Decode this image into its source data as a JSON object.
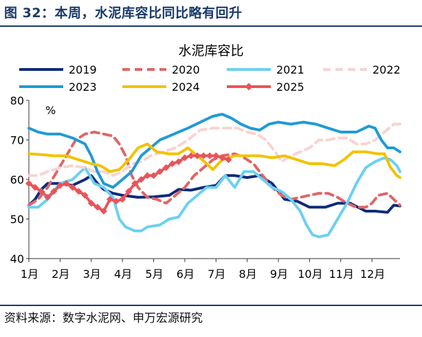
{
  "figure": {
    "title": "图 32：本周，水泥库容比同比略有回升",
    "source": "资料来源：数字水泥网、申万宏源研究"
  },
  "chart_data": {
    "type": "line",
    "title": "水泥库容比",
    "unit": "%",
    "xlabel": "",
    "ylabel": "",
    "ylim": [
      40,
      80
    ],
    "yticks": [
      "40",
      "50",
      "60",
      "70",
      "80"
    ],
    "xlim": [
      1,
      12.9
    ],
    "month_labels": [
      "1月",
      "2月",
      "3月",
      "4月",
      "5月",
      "6月",
      "7月",
      "8月",
      "9月",
      "10月",
      "11月",
      "12月"
    ],
    "grid": false,
    "legend_position": "top",
    "series": [
      {
        "name": "2019",
        "color": "#0e2a7a",
        "dash": "solid",
        "width": 4,
        "points": [
          [
            1.0,
            53.5
          ],
          [
            1.2,
            55
          ],
          [
            1.4,
            57.5
          ],
          [
            1.6,
            59
          ],
          [
            2.0,
            59
          ],
          [
            2.4,
            58.5
          ],
          [
            2.8,
            60
          ],
          [
            3.0,
            61
          ],
          [
            3.2,
            59
          ],
          [
            3.4,
            57.5
          ],
          [
            3.7,
            56.5
          ],
          [
            4.0,
            56
          ],
          [
            4.5,
            55.5
          ],
          [
            5.0,
            55.6
          ],
          [
            5.5,
            56
          ],
          [
            5.8,
            57.5
          ],
          [
            6.2,
            57.3
          ],
          [
            6.6,
            58
          ],
          [
            7.0,
            58.5
          ],
          [
            7.3,
            61
          ],
          [
            7.6,
            61
          ],
          [
            8.0,
            60.5
          ],
          [
            8.4,
            61
          ],
          [
            8.8,
            59
          ],
          [
            9.2,
            55
          ],
          [
            9.6,
            54.5
          ],
          [
            10.0,
            53
          ],
          [
            10.5,
            53
          ],
          [
            10.9,
            54
          ],
          [
            11.3,
            54
          ],
          [
            11.8,
            52
          ],
          [
            12.1,
            52
          ],
          [
            12.5,
            51.7
          ],
          [
            12.7,
            53.5
          ],
          [
            12.9,
            53.3
          ]
        ]
      },
      {
        "name": "2020",
        "color": "#e06666",
        "dash": "dashed",
        "width": 4,
        "points": [
          [
            1.0,
            53.5
          ],
          [
            1.3,
            55
          ],
          [
            1.6,
            58
          ],
          [
            1.9,
            62
          ],
          [
            2.2,
            66
          ],
          [
            2.5,
            70
          ],
          [
            2.8,
            71.5
          ],
          [
            3.1,
            72
          ],
          [
            3.4,
            71.5
          ],
          [
            3.7,
            71
          ],
          [
            3.9,
            69
          ],
          [
            4.1,
            66
          ],
          [
            4.3,
            61
          ],
          [
            4.5,
            58
          ],
          [
            4.8,
            55.5
          ],
          [
            5.1,
            55
          ],
          [
            5.4,
            54
          ],
          [
            5.7,
            56
          ],
          [
            6.0,
            58
          ],
          [
            6.3,
            61
          ],
          [
            6.6,
            63
          ],
          [
            6.9,
            65
          ],
          [
            7.2,
            66
          ],
          [
            7.6,
            66.5
          ],
          [
            7.9,
            65.5
          ],
          [
            8.2,
            64
          ],
          [
            8.5,
            61
          ],
          [
            8.8,
            58
          ],
          [
            9.1,
            56
          ],
          [
            9.4,
            55
          ],
          [
            9.7,
            55.5
          ],
          [
            10.0,
            56
          ],
          [
            10.3,
            56.5
          ],
          [
            10.6,
            56.5
          ],
          [
            10.9,
            55.5
          ],
          [
            11.2,
            54
          ],
          [
            11.5,
            53
          ],
          [
            11.8,
            53
          ],
          [
            12.0,
            54
          ],
          [
            12.2,
            56
          ],
          [
            12.5,
            56.5
          ],
          [
            12.7,
            55
          ],
          [
            12.9,
            53.5
          ]
        ]
      },
      {
        "name": "2021",
        "color": "#6cd0f2",
        "dash": "solid",
        "width": 4,
        "points": [
          [
            1.0,
            53
          ],
          [
            1.3,
            53
          ],
          [
            1.6,
            55
          ],
          [
            2.0,
            59
          ],
          [
            2.4,
            60
          ],
          [
            2.8,
            63
          ],
          [
            3.1,
            59
          ],
          [
            3.4,
            58
          ],
          [
            3.7,
            55.5
          ],
          [
            3.9,
            50
          ],
          [
            4.1,
            48
          ],
          [
            4.4,
            47
          ],
          [
            4.6,
            47
          ],
          [
            4.8,
            48
          ],
          [
            5.2,
            48.5
          ],
          [
            5.5,
            50
          ],
          [
            5.8,
            50.5
          ],
          [
            6.1,
            54
          ],
          [
            6.4,
            56
          ],
          [
            6.7,
            58
          ],
          [
            7.0,
            58
          ],
          [
            7.3,
            61
          ],
          [
            7.6,
            58
          ],
          [
            7.9,
            62
          ],
          [
            8.2,
            62
          ],
          [
            8.5,
            60
          ],
          [
            8.8,
            58
          ],
          [
            9.1,
            57
          ],
          [
            9.4,
            55
          ],
          [
            9.7,
            52
          ],
          [
            9.9,
            48.5
          ],
          [
            10.1,
            46
          ],
          [
            10.3,
            45.5
          ],
          [
            10.6,
            46
          ],
          [
            10.9,
            50
          ],
          [
            11.2,
            54
          ],
          [
            11.5,
            59
          ],
          [
            11.8,
            63
          ],
          [
            12.1,
            64.5
          ],
          [
            12.4,
            65.5
          ],
          [
            12.6,
            65
          ],
          [
            12.8,
            63.5
          ],
          [
            12.9,
            62
          ]
        ]
      },
      {
        "name": "2022",
        "color": "#f8d3d3",
        "dash": "dashed",
        "width": 4,
        "points": [
          [
            1.0,
            61
          ],
          [
            1.3,
            61
          ],
          [
            1.6,
            62
          ],
          [
            2.0,
            63
          ],
          [
            2.4,
            63.5
          ],
          [
            2.8,
            63
          ],
          [
            3.1,
            62
          ],
          [
            3.4,
            62
          ],
          [
            3.7,
            61
          ],
          [
            4.0,
            62
          ],
          [
            4.3,
            64
          ],
          [
            4.6,
            64.5
          ],
          [
            4.9,
            66
          ],
          [
            5.3,
            67
          ],
          [
            5.7,
            68
          ],
          [
            6.1,
            70
          ],
          [
            6.5,
            72.5
          ],
          [
            6.9,
            73
          ],
          [
            7.3,
            73
          ],
          [
            7.7,
            73
          ],
          [
            8.0,
            72
          ],
          [
            8.3,
            71.5
          ],
          [
            8.6,
            70
          ],
          [
            8.9,
            67
          ],
          [
            9.1,
            64.5
          ],
          [
            9.4,
            66
          ],
          [
            9.7,
            67
          ],
          [
            10.0,
            68
          ],
          [
            10.3,
            70
          ],
          [
            10.6,
            70
          ],
          [
            10.9,
            70.5
          ],
          [
            11.2,
            70.5
          ],
          [
            11.5,
            69
          ],
          [
            11.8,
            69
          ],
          [
            12.1,
            70
          ],
          [
            12.4,
            72
          ],
          [
            12.7,
            74
          ],
          [
            12.9,
            74
          ]
        ]
      },
      {
        "name": "2023",
        "color": "#1f9ad6",
        "dash": "solid",
        "width": 4,
        "points": [
          [
            1.0,
            73
          ],
          [
            1.3,
            72
          ],
          [
            1.6,
            71.5
          ],
          [
            2.0,
            71.5
          ],
          [
            2.4,
            70.5
          ],
          [
            2.8,
            69
          ],
          [
            3.0,
            66
          ],
          [
            3.2,
            62
          ],
          [
            3.4,
            59
          ],
          [
            3.7,
            58
          ],
          [
            4.0,
            60
          ],
          [
            4.3,
            62
          ],
          [
            4.6,
            66
          ],
          [
            4.9,
            68
          ],
          [
            5.2,
            70
          ],
          [
            5.5,
            71
          ],
          [
            5.8,
            72
          ],
          [
            6.1,
            73
          ],
          [
            6.5,
            74.5
          ],
          [
            6.9,
            76
          ],
          [
            7.2,
            76.5
          ],
          [
            7.5,
            75.5
          ],
          [
            7.8,
            74
          ],
          [
            8.1,
            73
          ],
          [
            8.4,
            72.5
          ],
          [
            8.7,
            74
          ],
          [
            9.0,
            74.5
          ],
          [
            9.4,
            74
          ],
          [
            9.8,
            74.5
          ],
          [
            10.2,
            74
          ],
          [
            10.6,
            73
          ],
          [
            11.0,
            72
          ],
          [
            11.5,
            72
          ],
          [
            11.9,
            73.5
          ],
          [
            12.1,
            73
          ],
          [
            12.3,
            70
          ],
          [
            12.5,
            68
          ],
          [
            12.7,
            68
          ],
          [
            12.9,
            67
          ]
        ]
      },
      {
        "name": "2024",
        "color": "#f2c200",
        "dash": "solid",
        "width": 4,
        "points": [
          [
            1.0,
            66.5
          ],
          [
            1.4,
            66.3
          ],
          [
            1.8,
            66
          ],
          [
            2.2,
            66
          ],
          [
            2.6,
            65
          ],
          [
            3.0,
            64
          ],
          [
            3.3,
            63.5
          ],
          [
            3.6,
            62
          ],
          [
            3.9,
            62.5
          ],
          [
            4.2,
            65
          ],
          [
            4.5,
            68
          ],
          [
            4.8,
            69
          ],
          [
            5.1,
            67
          ],
          [
            5.5,
            66.5
          ],
          [
            5.8,
            66.5
          ],
          [
            6.1,
            68
          ],
          [
            6.4,
            66
          ],
          [
            6.7,
            64
          ],
          [
            6.9,
            62.5
          ],
          [
            7.2,
            65
          ],
          [
            7.6,
            66
          ],
          [
            8.0,
            66
          ],
          [
            8.4,
            66
          ],
          [
            8.8,
            65.5
          ],
          [
            9.2,
            66
          ],
          [
            9.6,
            65
          ],
          [
            10.0,
            64
          ],
          [
            10.4,
            64
          ],
          [
            10.8,
            63.5
          ],
          [
            11.1,
            65
          ],
          [
            11.4,
            67
          ],
          [
            11.8,
            67
          ],
          [
            12.2,
            66.5
          ],
          [
            12.4,
            66.5
          ],
          [
            12.6,
            63
          ],
          [
            12.8,
            61
          ],
          [
            12.9,
            60.5
          ]
        ]
      },
      {
        "name": "2025",
        "color": "#e8545a",
        "dash": "solid",
        "width": 4,
        "markers": "diamond",
        "points": [
          [
            1.0,
            59
          ],
          [
            1.2,
            58
          ],
          [
            1.4,
            57
          ],
          [
            1.6,
            55.5
          ],
          [
            1.8,
            57
          ],
          [
            2.0,
            58.5
          ],
          [
            2.2,
            59
          ],
          [
            2.4,
            58
          ],
          [
            2.6,
            57
          ],
          [
            2.8,
            56
          ],
          [
            3.0,
            54
          ],
          [
            3.2,
            53
          ],
          [
            3.4,
            52
          ],
          [
            3.6,
            55
          ],
          [
            3.8,
            54.5
          ],
          [
            4.0,
            55
          ],
          [
            4.2,
            57
          ],
          [
            4.4,
            59
          ],
          [
            4.6,
            60
          ],
          [
            4.8,
            61
          ],
          [
            5.0,
            61
          ],
          [
            5.2,
            62
          ],
          [
            5.4,
            63
          ],
          [
            5.6,
            64
          ],
          [
            5.8,
            64.5
          ],
          [
            6.0,
            65.5
          ],
          [
            6.2,
            66
          ],
          [
            6.4,
            66
          ],
          [
            6.6,
            66
          ],
          [
            6.8,
            66
          ],
          [
            7.0,
            66
          ],
          [
            7.2,
            65.5
          ],
          [
            7.4,
            65
          ]
        ]
      }
    ]
  }
}
